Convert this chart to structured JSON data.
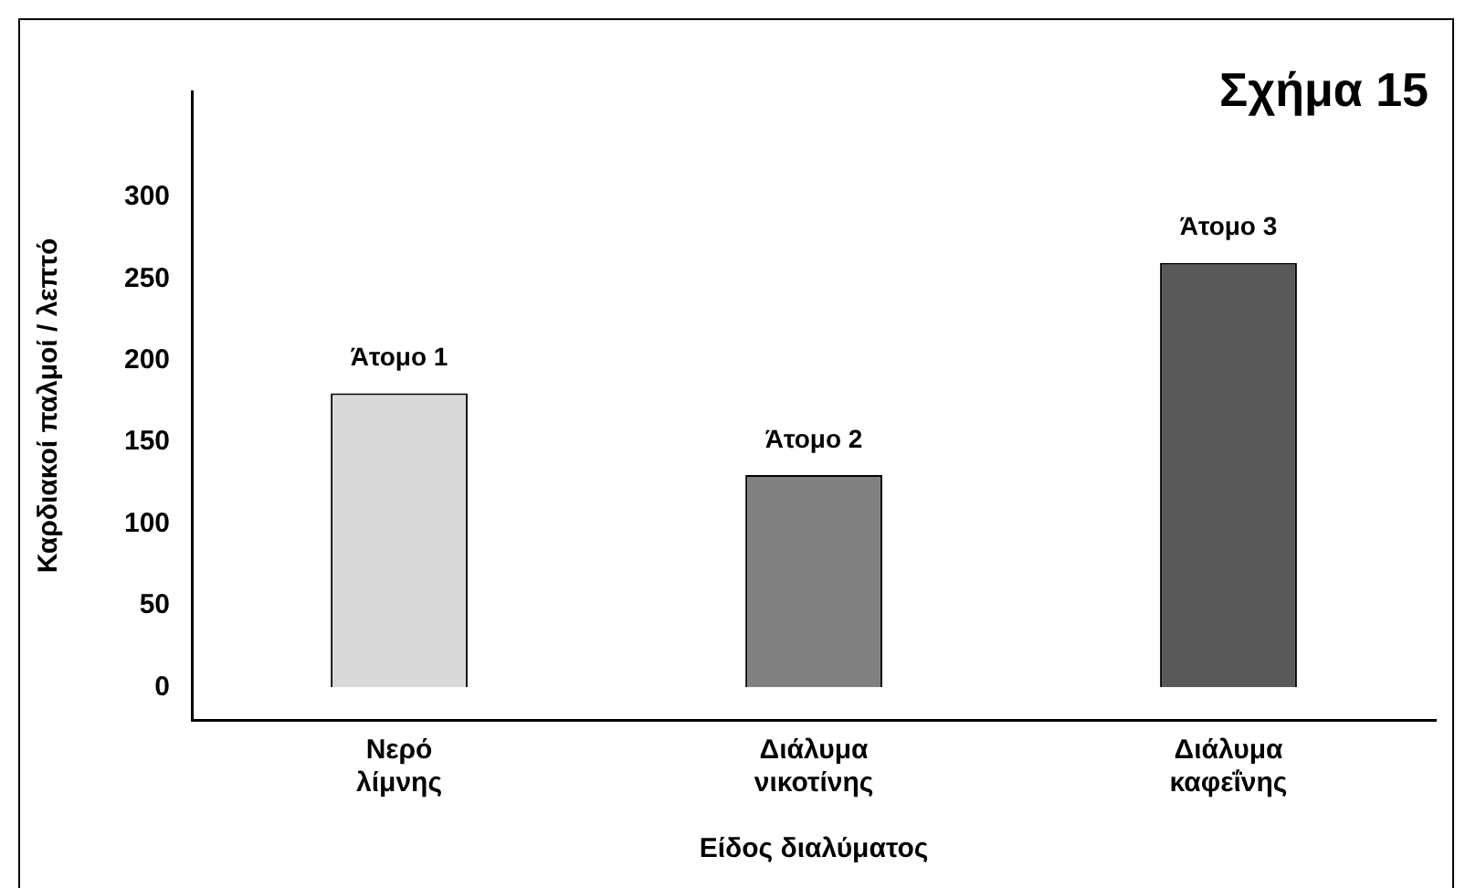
{
  "chart_data": {
    "type": "bar",
    "title": "Σχήμα 15",
    "xlabel": "Είδος διαλύματος",
    "ylabel": "Καρδιακοί παλμοί / λεπτό",
    "categories": [
      "Νερό λίμνης",
      "Διάλυμα νικοτίνης",
      "Διάλυμα καφεΐνης"
    ],
    "values": [
      180,
      130,
      260
    ],
    "colors": [
      "#d9d9d9",
      "#808080",
      "#595959"
    ],
    "ylim": [
      -20,
      365
    ],
    "yticks": [
      0,
      50,
      100,
      150,
      200,
      250,
      300
    ],
    "grid": false,
    "annotations": [
      {
        "text": "Άτομο 1",
        "x": "Νερό λίμνης",
        "y": 180
      },
      {
        "text": "Άτομο 2",
        "x": "Διάλυμα νικοτίνης",
        "y": 130
      },
      {
        "text": "Άτομο 3",
        "x": "Διάλυμα καφεΐνης",
        "y": 260
      }
    ]
  }
}
